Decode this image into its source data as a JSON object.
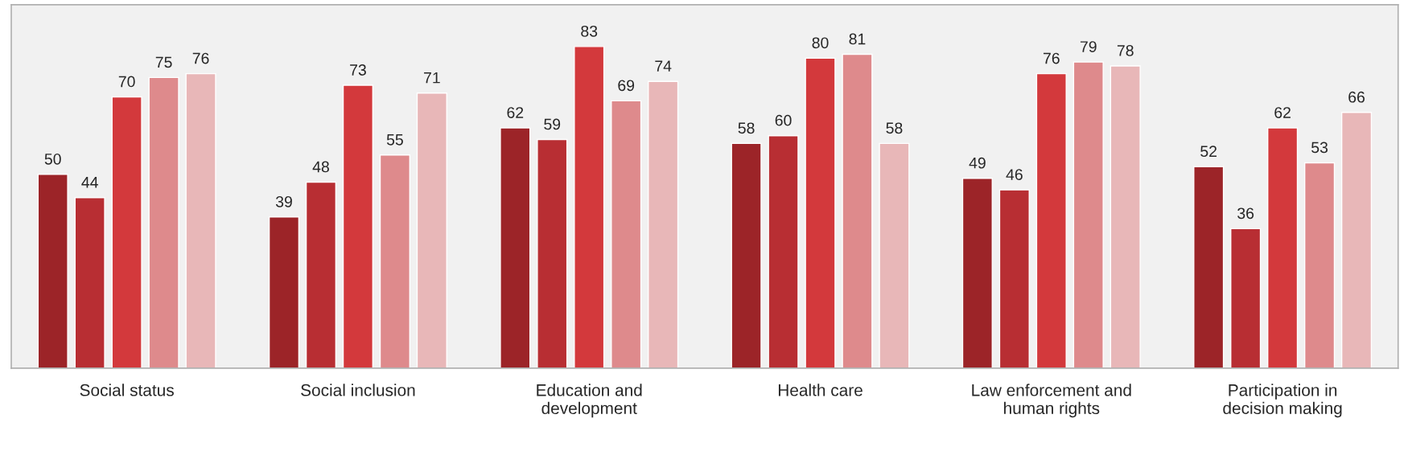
{
  "chart_data": {
    "type": "bar",
    "categories": [
      "Social status",
      "Social inclusion",
      "Education and\ndevelopment",
      "Health care",
      "Law enforcement and\nhuman rights",
      "Participation in\ndecision making"
    ],
    "series": [
      {
        "color": "#9c2428",
        "values": [
          50,
          39,
          62,
          58,
          49,
          52
        ]
      },
      {
        "color": "#b82e33",
        "values": [
          44,
          48,
          59,
          60,
          46,
          36
        ]
      },
      {
        "color": "#d3393c",
        "values": [
          70,
          73,
          83,
          80,
          76,
          62
        ]
      },
      {
        "color": "#de8a8c",
        "values": [
          75,
          55,
          69,
          81,
          79,
          53
        ]
      },
      {
        "color": "#e8b7b8",
        "values": [
          76,
          71,
          74,
          58,
          78,
          66
        ]
      }
    ],
    "data_labels": true,
    "grid": false,
    "legend": false
  }
}
